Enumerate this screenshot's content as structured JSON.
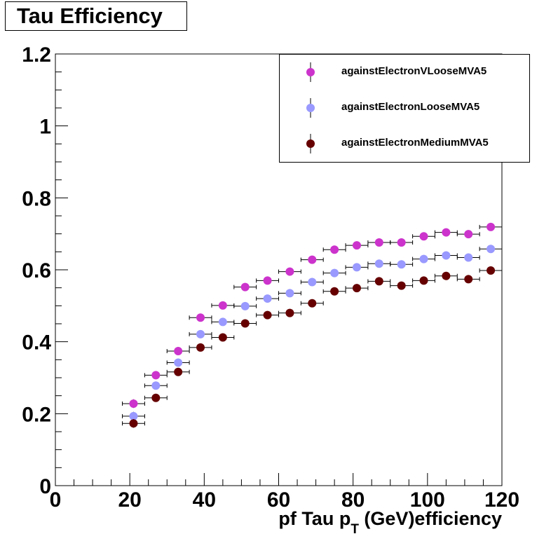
{
  "title": "Tau Efficiency",
  "chart_data": {
    "type": "scatter",
    "title": "Tau Efficiency",
    "xlabel_main": "pf Tau p",
    "xlabel_sub": "T",
    "xlabel_tail": " (GeV)efficiency",
    "ylabel": "",
    "xlim": [
      0,
      120
    ],
    "ylim": [
      0,
      1.2
    ],
    "x_ticks": [
      "0",
      "20",
      "40",
      "60",
      "80",
      "100",
      "120"
    ],
    "y_ticks": [
      "0",
      "0.2",
      "0.4",
      "0.6",
      "0.8",
      "1",
      "1.2"
    ],
    "legend_position": "top-right",
    "grid": false,
    "x": [
      21,
      27,
      33,
      39,
      45,
      51,
      57,
      63,
      69,
      75,
      81,
      87,
      93,
      99,
      105,
      111,
      117
    ],
    "x_err": 3,
    "series": [
      {
        "name": "againstElectronVLooseMVA5",
        "color": "#cc33cc",
        "values": [
          0.228,
          0.307,
          0.374,
          0.467,
          0.501,
          0.552,
          0.57,
          0.595,
          0.628,
          0.656,
          0.668,
          0.676,
          0.676,
          0.693,
          0.704,
          0.699,
          0.719
        ],
        "y_err": [
          0.012,
          0.011,
          0.01,
          0.009,
          0.008,
          0.008,
          0.008,
          0.007,
          0.007,
          0.007,
          0.007,
          0.007,
          0.007,
          0.007,
          0.007,
          0.007,
          0.007
        ]
      },
      {
        "name": "againstElectronLooseMVA5",
        "color": "#9999ff",
        "values": [
          0.193,
          0.278,
          0.342,
          0.421,
          0.455,
          0.499,
          0.52,
          0.535,
          0.566,
          0.591,
          0.607,
          0.617,
          0.615,
          0.63,
          0.64,
          0.634,
          0.658
        ],
        "y_err": [
          0.012,
          0.011,
          0.01,
          0.009,
          0.008,
          0.008,
          0.008,
          0.007,
          0.007,
          0.007,
          0.007,
          0.007,
          0.007,
          0.007,
          0.007,
          0.007,
          0.007
        ]
      },
      {
        "name": "againstElectronMediumMVA5",
        "color": "#660000",
        "values": [
          0.173,
          0.244,
          0.316,
          0.384,
          0.412,
          0.451,
          0.474,
          0.48,
          0.507,
          0.54,
          0.549,
          0.568,
          0.556,
          0.57,
          0.583,
          0.574,
          0.598
        ],
        "y_err": [
          0.012,
          0.011,
          0.01,
          0.009,
          0.008,
          0.008,
          0.008,
          0.007,
          0.007,
          0.007,
          0.007,
          0.007,
          0.007,
          0.007,
          0.007,
          0.007,
          0.007
        ]
      }
    ]
  }
}
